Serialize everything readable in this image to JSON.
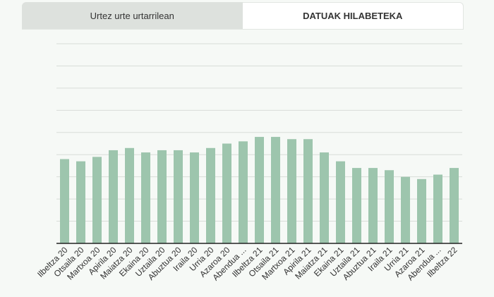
{
  "tabs": [
    {
      "label": "Urtez urte urtarrilean",
      "active": false
    },
    {
      "label": "DATUAK HILABETEKA",
      "active": true
    }
  ],
  "colors": {
    "bar": "#9dc5ad",
    "grid": "#d8ddd8",
    "axis": "#222222"
  },
  "chart_data": {
    "type": "bar",
    "categories": [
      "Ilbeltza 20",
      "Otsaila 20",
      "Martxoa 20",
      "Apirila 20",
      "Maiatza 20",
      "Ekaina 20",
      "Uztaila 20",
      "Abuztua 20",
      "Iraila 20",
      "Urria 20",
      "Azaroa 20",
      "Abendua ...",
      "Ilbeltza 21",
      "Otsaila 21",
      "Martxoa 21",
      "Apirila 21",
      "Maiatza 21",
      "Ekaina 21",
      "Uztaila 21",
      "Abuztua 21",
      "Iraila 21",
      "Urria 21",
      "Azaroa 21",
      "Abendua ...",
      "Ilbeltza 22"
    ],
    "values": [
      38,
      37,
      39,
      42,
      43,
      41,
      42,
      42,
      41,
      43,
      45,
      46,
      48,
      48,
      47,
      47,
      41,
      37,
      34,
      34,
      33,
      30,
      29,
      31,
      34
    ],
    "ylim": [
      0,
      90
    ],
    "grid": true,
    "gridlines": 9
  }
}
